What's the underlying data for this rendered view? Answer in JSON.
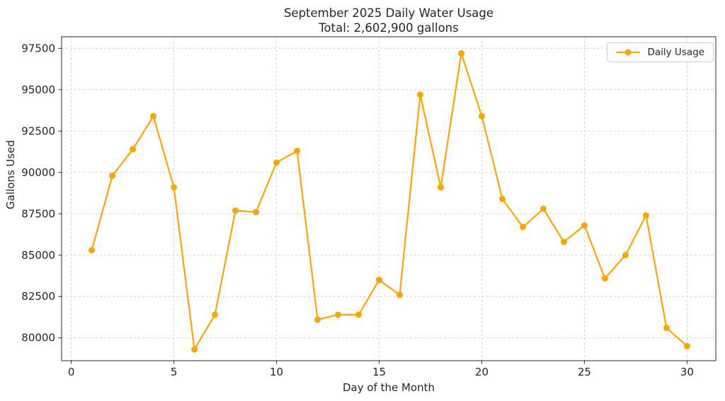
{
  "chart_data": {
    "type": "line",
    "title": "September 2025 Daily Water Usage",
    "subtitle": "Total: 2,602,900 gallons",
    "xlabel": "Day of the Month",
    "ylabel": "Gallons Used",
    "x": [
      1,
      2,
      3,
      4,
      5,
      6,
      7,
      8,
      9,
      10,
      11,
      12,
      13,
      14,
      15,
      16,
      17,
      18,
      19,
      20,
      21,
      22,
      23,
      24,
      25,
      26,
      27,
      28,
      29,
      30
    ],
    "values": [
      85300,
      89800,
      91400,
      93400,
      89100,
      79300,
      81400,
      87700,
      87600,
      90600,
      91300,
      81100,
      81400,
      81400,
      83500,
      82600,
      94700,
      89100,
      97200,
      93400,
      88400,
      86700,
      87800,
      85800,
      86800,
      83600,
      85000,
      87400,
      80600,
      79500
    ],
    "total_gallons": 2602900,
    "x_ticks": [
      0,
      5,
      10,
      15,
      20,
      25,
      30
    ],
    "y_ticks": [
      80000,
      82500,
      85000,
      87500,
      90000,
      92500,
      95000,
      97500
    ],
    "xlim": [
      -0.47,
      31.4
    ],
    "ylim": [
      78620,
      98200
    ],
    "grid": true,
    "grid_style": "dashed",
    "legend": {
      "label": "Daily Usage",
      "position": "upper right"
    },
    "colors": {
      "line": "#FFA500",
      "marker": "#FFA500",
      "grid": "#d0d0d0",
      "spine": "#2b2b2b",
      "tick_text": "#262626"
    }
  }
}
